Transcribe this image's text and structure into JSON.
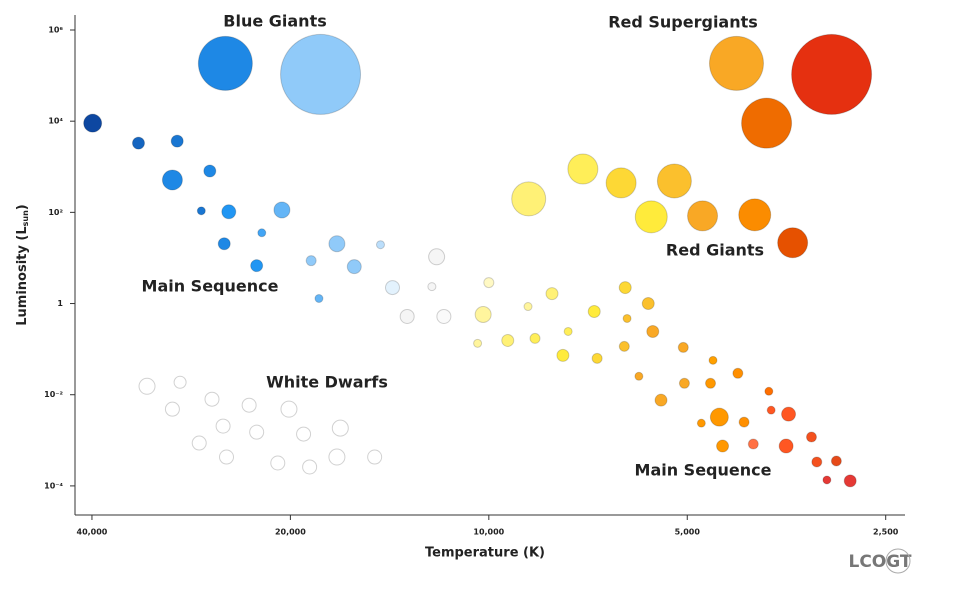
{
  "chart_data": {
    "type": "bubble",
    "xlabel": "Temperature (K)",
    "ylabel": [
      "Luminosity (L",
      "sun",
      ")"
    ],
    "annotations": [
      "Blue Giants",
      "Red Supergiants",
      "Red Giants",
      "Main Sequence",
      "White Dwarfs",
      "Main Sequence"
    ],
    "logo": "LCOGT",
    "xscale": "log",
    "yscale": "log",
    "xlim": [
      42440,
      2337
    ],
    "ylim": [
      2.3e-05,
      1000000
    ],
    "xticks": [
      {
        "value": 40000,
        "label": "40,000"
      },
      {
        "value": 20000,
        "label": "20,000"
      },
      {
        "value": 10000,
        "label": "10,000"
      },
      {
        "value": 5000,
        "label": "5,000"
      },
      {
        "value": 2500,
        "label": "2,500"
      }
    ],
    "yticks": [
      {
        "value": 1000000,
        "label": "10⁶"
      },
      {
        "value": 10000,
        "label": "10⁴"
      },
      {
        "value": 100,
        "label": "10²"
      },
      1,
      {
        "value": 0.01,
        "label": "10⁻²"
      },
      {
        "value": 0.0001,
        "label": "10⁻⁴"
      }
    ],
    "series": [
      {
        "x": [
          25100,
          18000,
          4210,
          3020,
          3790,
          39900,
          34000,
          29700,
          30200,
          26500,
          27300,
          24800,
          20600,
          22100,
          25200,
          22500,
          17000,
          18600,
          16000,
          14600,
          18100,
          14000,
          12000,
          12200,
          13300,
          11700,
          10000,
          10200,
          8720,
          8020,
          10400,
          9360,
          8510,
          7580,
          6920,
          7720,
          6850,
          6210,
          6170,
          5730,
          5640,
          6230,
          5070,
          5920,
          5480,
          5050,
          4570,
          4610,
          4190,
          4470,
          4760,
          4100,
          3760,
          3730,
          3510,
          4420,
          3970,
          3540,
          3240,
          3180,
          2970,
          3070,
          2830,
          8700,
          7200,
          6300,
          5230,
          5670,
          4740,
          3950,
          3460,
          33000,
          29400,
          30200,
          26300,
          23100,
          20100,
          25300,
          27500,
          22500,
          19100,
          16800,
          25000,
          20900,
          18700,
          17000,
          14900
        ],
        "values": [
          185000,
          106000,
          185000,
          106000,
          9040,
          9040,
          3300,
          3650,
          513,
          807,
          108,
          103,
          113,
          35.6,
          20.5,
          6.77,
          20.5,
          8.71,
          6.44,
          19.5,
          1.29,
          2.24,
          10.6,
          2.35,
          0.52,
          0.52,
          2.88,
          0.575,
          0.86,
          1.65,
          0.134,
          0.155,
          0.172,
          0.244,
          0.668,
          0.073,
          0.0628,
          2.24,
          0.47,
          1,
          0.244,
          0.115,
          0.109,
          0.0254,
          0.00759,
          0.0178,
          0.0568,
          0.0178,
          0.0295,
          0.00322,
          0.00238,
          0.00251,
          0.0119,
          0.00458,
          0.00375,
          0.000748,
          0.000828,
          0.000748,
          0.00118,
          0.000335,
          0.000352,
          0.000135,
          0.000129,
          197,
          893,
          442,
          488,
          79.7,
          83.8,
          88.2,
          21.5,
          0.0153,
          0.0188,
          0.00482,
          0.00798,
          0.00589,
          0.00482,
          0.00205,
          0.000871,
          0.00151,
          0.00137,
          0.00185,
          0.00043,
          0.000318,
          0.00026,
          0.00043,
          0.00043
        ],
        "sizes": [
          27,
          40,
          27,
          40,
          25,
          9,
          6,
          6,
          10,
          6,
          4,
          7,
          8,
          4,
          6,
          6,
          8,
          5,
          7,
          4,
          4,
          7,
          8,
          4,
          7,
          7,
          5,
          8,
          4,
          6,
          4,
          6,
          5,
          4,
          6,
          6,
          5,
          6,
          4,
          6,
          6,
          5,
          5,
          4,
          6,
          5,
          4,
          5,
          5,
          9,
          4,
          5,
          4,
          4,
          7,
          6,
          5,
          7,
          5,
          5,
          5,
          4,
          6,
          17,
          15,
          15,
          17,
          16,
          15,
          16,
          15,
          8,
          6,
          7,
          7,
          7,
          8,
          7,
          7,
          7,
          7,
          8,
          7,
          7,
          7,
          8,
          7
        ],
        "colors": [
          "#1e88e5",
          "#90caf9",
          "#f9a825",
          "#e53010",
          "#ef6c00",
          "#0d47a1",
          "#1565c0",
          "#1976d2",
          "#1e88e5",
          "#1e88e5",
          "#1976d2",
          "#2196f3",
          "#64b5f6",
          "#42a5f5",
          "#1e88e5",
          "#2196f3",
          "#90caf9",
          "#90caf9",
          "#90caf9",
          "#bbdefb",
          "#64b5f6",
          "#e3f2fd",
          "#f5f5f5",
          "#f5f5f5",
          "#f5f5f5",
          "#fafafa",
          "#fff9c4",
          "#fff59d",
          "#fff59d",
          "#fff176",
          "#fff59d",
          "#fff176",
          "#ffee58",
          "#ffee58",
          "#ffeb3b",
          "#ffeb3b",
          "#fdd835",
          "#fdd835",
          "#fbc02d",
          "#fbc02d",
          "#f9a825",
          "#fbc02d",
          "#f9a825",
          "#f9a825",
          "#f9a825",
          "#f9a825",
          "#ffa000",
          "#ff9800",
          "#ff8f00",
          "#ff9800",
          "#ff9800",
          "#ff8f00",
          "#ff6f00",
          "#ff5722",
          "#ff5722",
          "#ff9800",
          "#ff7043",
          "#ff5722",
          "#f4511e",
          "#f4511e",
          "#e64a19",
          "#e53935",
          "#e53935",
          "#fff176",
          "#ffee58",
          "#fdd835",
          "#fbc02d",
          "#ffeb3b",
          "#f9a825",
          "#fb8c00",
          "#e65100",
          "#ffffff",
          "#ffffff",
          "#ffffff",
          "#ffffff",
          "#ffffff",
          "#ffffff",
          "#ffffff",
          "#ffffff",
          "#ffffff",
          "#ffffff",
          "#ffffff",
          "#ffffff",
          "#ffffff",
          "#ffffff",
          "#ffffff",
          "#ffffff"
        ]
      }
    ]
  }
}
